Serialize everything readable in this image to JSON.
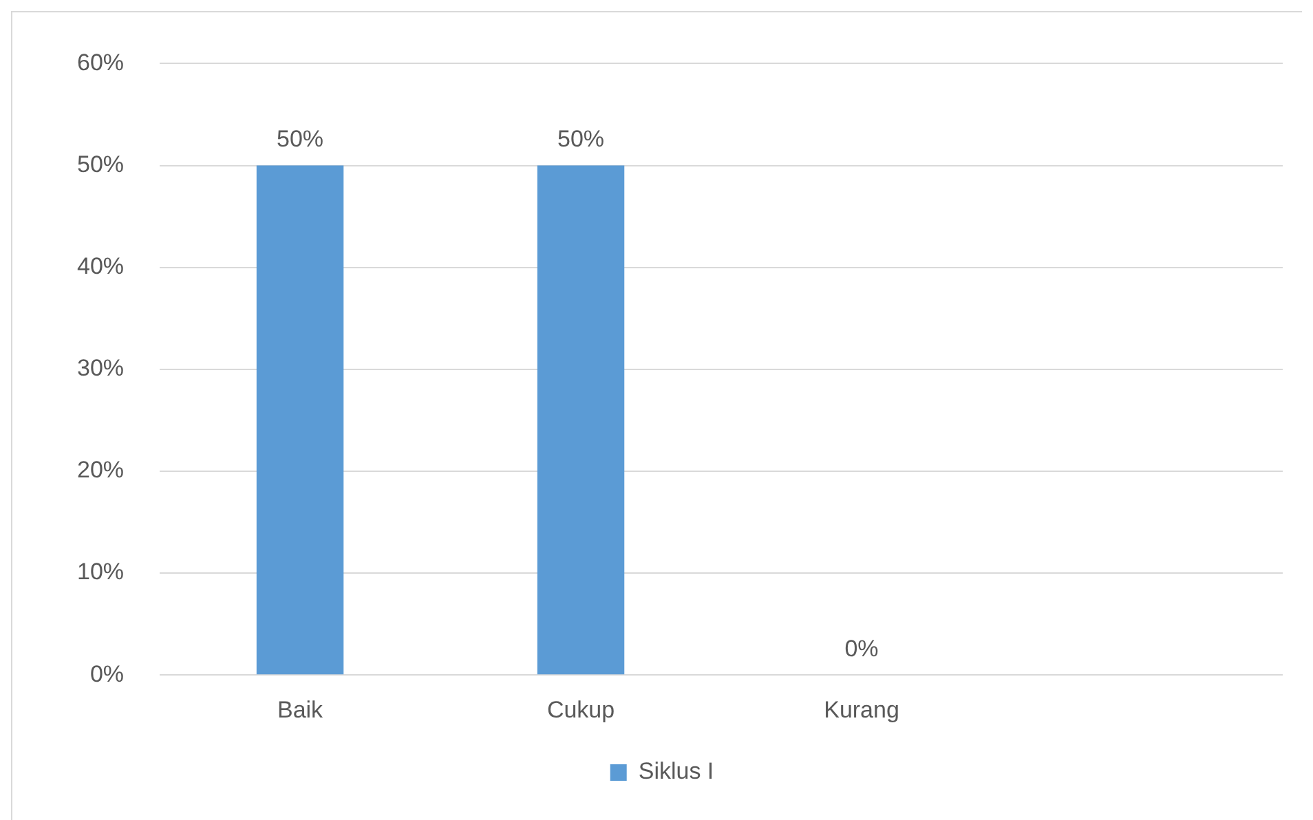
{
  "chart_data": {
    "type": "bar",
    "categories": [
      "Baik",
      "Cukup",
      "Kurang",
      null
    ],
    "series": [
      {
        "name": "Siklus I",
        "color": "#5b9bd5",
        "values": [
          50,
          50,
          0,
          null
        ],
        "value_labels": [
          "50%",
          "50%",
          "0%",
          null
        ]
      }
    ],
    "ylim": [
      0,
      60
    ],
    "yticks": [
      {
        "value": 0,
        "label": "0%"
      },
      {
        "value": 10,
        "label": "10%"
      },
      {
        "value": 20,
        "label": "20%"
      },
      {
        "value": 30,
        "label": "30%"
      },
      {
        "value": 40,
        "label": "40%"
      },
      {
        "value": 50,
        "label": "50%"
      },
      {
        "value": 60,
        "label": "60%"
      }
    ],
    "grid": "y",
    "legend": "bottom"
  }
}
